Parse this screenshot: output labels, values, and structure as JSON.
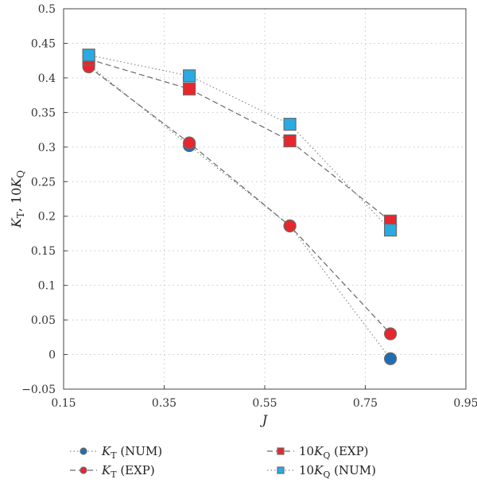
{
  "chart_data": {
    "type": "scatter",
    "title": "",
    "xlabel": "J",
    "ylabel_parts": {
      "k": "K",
      "sub_t": "T",
      "sep": ", 10",
      "k2": "K",
      "sub_q": "Q"
    },
    "xlim": [
      0.15,
      0.95
    ],
    "ylim": [
      -0.05,
      0.5
    ],
    "xticks": [
      0.15,
      0.35,
      0.55,
      0.75,
      0.95
    ],
    "xtick_labels": [
      "0.15",
      "0.35",
      "0.55",
      "0.75",
      "0.95"
    ],
    "yticks": [
      -0.05,
      0,
      0.05,
      0.1,
      0.15,
      0.2,
      0.25,
      0.3,
      0.35,
      0.4,
      0.45,
      0.5
    ],
    "ytick_labels": [
      "−0.05",
      "0",
      "0.05",
      "0.1",
      "0.15",
      "0.2",
      "0.25",
      "0.3",
      "0.35",
      "0.4",
      "0.45",
      "0.5"
    ],
    "grid": true,
    "legend_position": "bottom",
    "series": [
      {
        "name": "KT (NUM)",
        "label_main": "K",
        "label_sub": "T",
        "label_rest": " (NUM)",
        "label_prefix": "",
        "marker": "circle",
        "color": "#1f6db5",
        "line": "dotted",
        "x": [
          0.2,
          0.4,
          0.6,
          0.8
        ],
        "y": [
          0.419,
          0.302,
          0.186,
          -0.006
        ]
      },
      {
        "name": "KT (EXP)",
        "label_main": "K",
        "label_sub": "T",
        "label_rest": " (EXP)",
        "label_prefix": "",
        "marker": "circle",
        "color": "#e8262d",
        "line": "dashed",
        "x": [
          0.2,
          0.4,
          0.6,
          0.8
        ],
        "y": [
          0.416,
          0.306,
          0.186,
          0.03
        ]
      },
      {
        "name": "10KQ (EXP)",
        "label_main": "K",
        "label_sub": "Q",
        "label_rest": " (EXP)",
        "label_prefix": "10",
        "marker": "square",
        "color": "#e8262d",
        "line": "dashed",
        "x": [
          0.2,
          0.4,
          0.6,
          0.8
        ],
        "y": [
          0.427,
          0.384,
          0.309,
          0.193
        ]
      },
      {
        "name": "10KQ (NUM)",
        "label_main": "K",
        "label_sub": "Q",
        "label_rest": " (NUM)",
        "label_prefix": "10",
        "marker": "square",
        "color": "#29aae1",
        "line": "dotted",
        "x": [
          0.2,
          0.4,
          0.6,
          0.8
        ],
        "y": [
          0.433,
          0.403,
          0.333,
          0.18
        ]
      }
    ],
    "legend_order": [
      0,
      2,
      1,
      3
    ]
  }
}
